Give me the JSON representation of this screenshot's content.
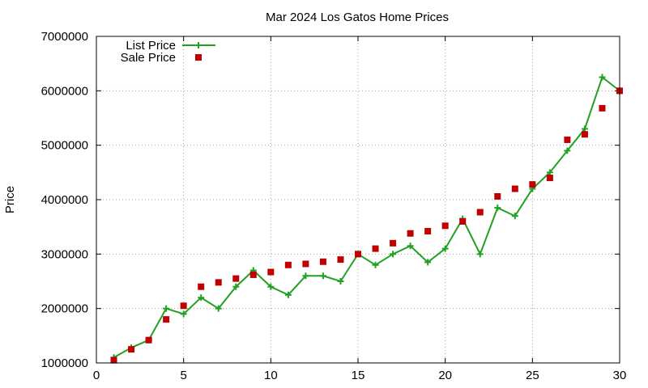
{
  "chart_data": {
    "type": "line",
    "title": "Mar 2024 Los Gatos Home Prices",
    "xlabel": "",
    "ylabel": "Price",
    "xlim": [
      0,
      30
    ],
    "ylim": [
      1000000,
      7000000
    ],
    "x_ticks": [
      0,
      5,
      10,
      15,
      20,
      25,
      30
    ],
    "y_ticks": [
      1000000,
      2000000,
      3000000,
      4000000,
      5000000,
      6000000,
      7000000
    ],
    "grid": true,
    "legend_position": "top-left",
    "series": [
      {
        "name": "List Price",
        "style": "line+cross",
        "color": "#22a022",
        "x": [
          1,
          2,
          3,
          4,
          5,
          6,
          7,
          8,
          9,
          10,
          11,
          12,
          13,
          14,
          15,
          16,
          17,
          18,
          19,
          20,
          21,
          22,
          23,
          24,
          25,
          26,
          27,
          28,
          29,
          30
        ],
        "y": [
          1100000,
          1280000,
          1420000,
          2000000,
          1900000,
          2200000,
          2000000,
          2400000,
          2700000,
          2400000,
          2250000,
          2600000,
          2600000,
          2500000,
          3000000,
          2800000,
          3000000,
          3150000,
          2850000,
          3100000,
          3650000,
          3000000,
          3850000,
          3700000,
          4200000,
          4500000,
          4900000,
          5300000,
          6250000,
          6000000
        ]
      },
      {
        "name": "Sale Price",
        "style": "square",
        "color": "#c00000",
        "x": [
          1,
          2,
          3,
          4,
          5,
          6,
          7,
          8,
          9,
          10,
          11,
          12,
          13,
          14,
          15,
          16,
          17,
          18,
          19,
          20,
          21,
          22,
          23,
          24,
          25,
          26,
          27,
          28,
          29,
          30
        ],
        "y": [
          1050000,
          1250000,
          1420000,
          1800000,
          2050000,
          2400000,
          2480000,
          2550000,
          2620000,
          2670000,
          2800000,
          2820000,
          2860000,
          2900000,
          3000000,
          3100000,
          3200000,
          3380000,
          3420000,
          3520000,
          3600000,
          3770000,
          4060000,
          4200000,
          4280000,
          4400000,
          5100000,
          5200000,
          5680000,
          6000000
        ]
      }
    ]
  }
}
